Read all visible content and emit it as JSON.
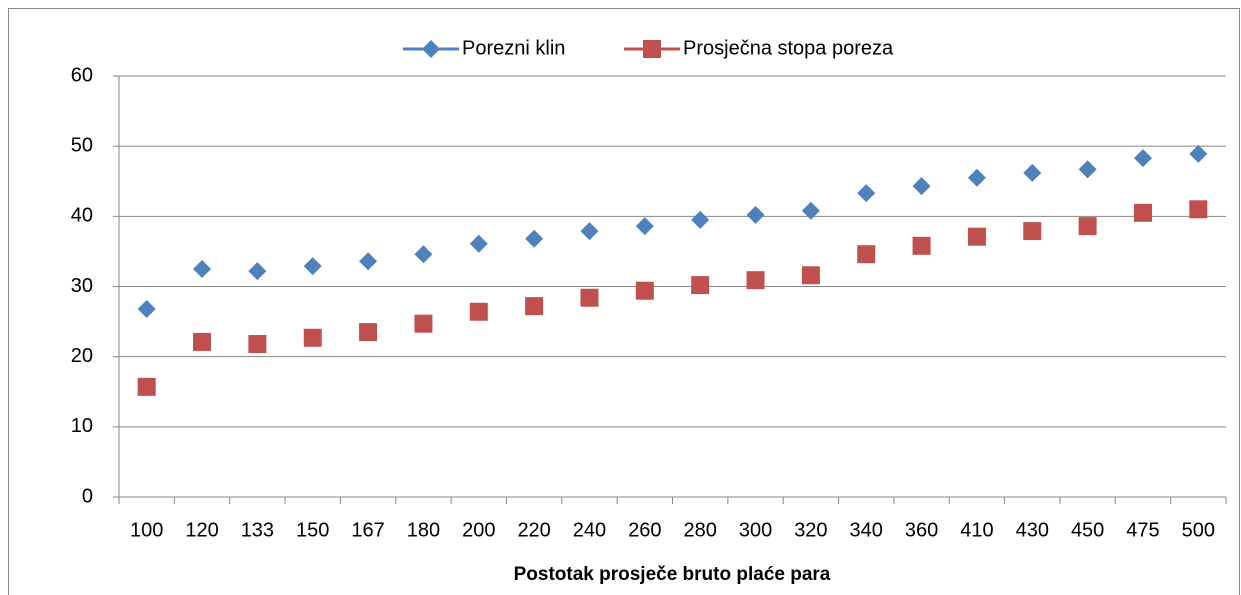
{
  "chart_data": {
    "type": "scatter",
    "x_label": "Postotak prosječe bruto plaće para",
    "categories": [
      "100",
      "120",
      "133",
      "150",
      "167",
      "180",
      "200",
      "220",
      "240",
      "260",
      "280",
      "300",
      "320",
      "340",
      "360",
      "410",
      "430",
      "450",
      "475",
      "500"
    ],
    "series": [
      {
        "name": "Porezni klin",
        "color": "#4f81bd",
        "marker": "diamond",
        "values": [
          26.8,
          32.5,
          32.2,
          32.9,
          33.6,
          34.6,
          36.1,
          36.8,
          37.9,
          38.6,
          39.5,
          40.2,
          40.8,
          43.3,
          44.3,
          45.5,
          46.2,
          46.7,
          48.3,
          48.9
        ]
      },
      {
        "name": "Prosječna stopa poreza",
        "color": "#c0504d",
        "marker": "square",
        "values": [
          15.7,
          22.1,
          21.8,
          22.7,
          23.5,
          24.7,
          26.4,
          27.2,
          28.4,
          29.4,
          30.2,
          30.9,
          31.6,
          34.6,
          35.8,
          37.1,
          37.9,
          38.6,
          40.5,
          41.0
        ]
      }
    ],
    "ylim": [
      0,
      60
    ],
    "yticks": [
      0,
      10,
      20,
      30,
      40,
      50,
      60
    ],
    "grid": true,
    "legend": "top"
  }
}
